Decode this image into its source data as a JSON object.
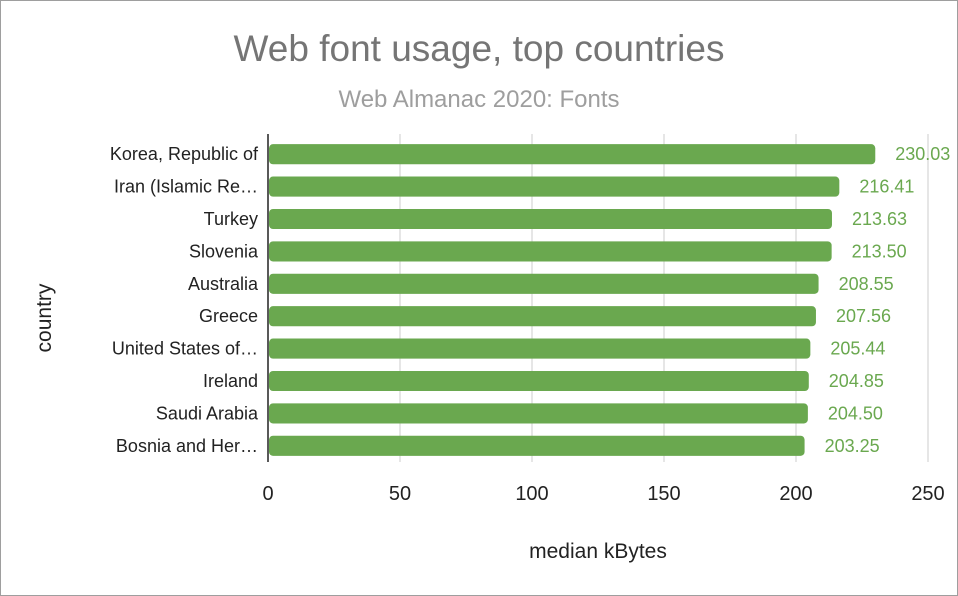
{
  "chart_data": {
    "type": "bar",
    "orientation": "horizontal",
    "title": "Web font usage, top countries",
    "subtitle": "Web Almanac 2020: Fonts",
    "xlabel": "median kBytes",
    "ylabel": "country",
    "categories": [
      "Korea, Republic of",
      "Iran (Islamic Re…",
      "Turkey",
      "Slovenia",
      "Australia",
      "Greece",
      "United States of…",
      "Ireland",
      "Saudi Arabia",
      "Bosnia and Her…"
    ],
    "values": [
      230.03,
      216.41,
      213.63,
      213.5,
      208.55,
      207.56,
      205.44,
      204.85,
      204.5,
      203.25
    ],
    "value_labels": [
      "230.03",
      "216.41",
      "213.63",
      "213.50",
      "208.55",
      "207.56",
      "205.44",
      "204.85",
      "204.50",
      "203.25"
    ],
    "xlim": [
      0,
      250
    ],
    "xticks": [
      0,
      50,
      100,
      150,
      200,
      250
    ],
    "xtick_labels": [
      "0",
      "50",
      "100",
      "150",
      "200",
      "250"
    ],
    "grid": "vertical",
    "legend": "none",
    "bar_color": "#6aa84f",
    "label_color": "#6aa84f"
  }
}
